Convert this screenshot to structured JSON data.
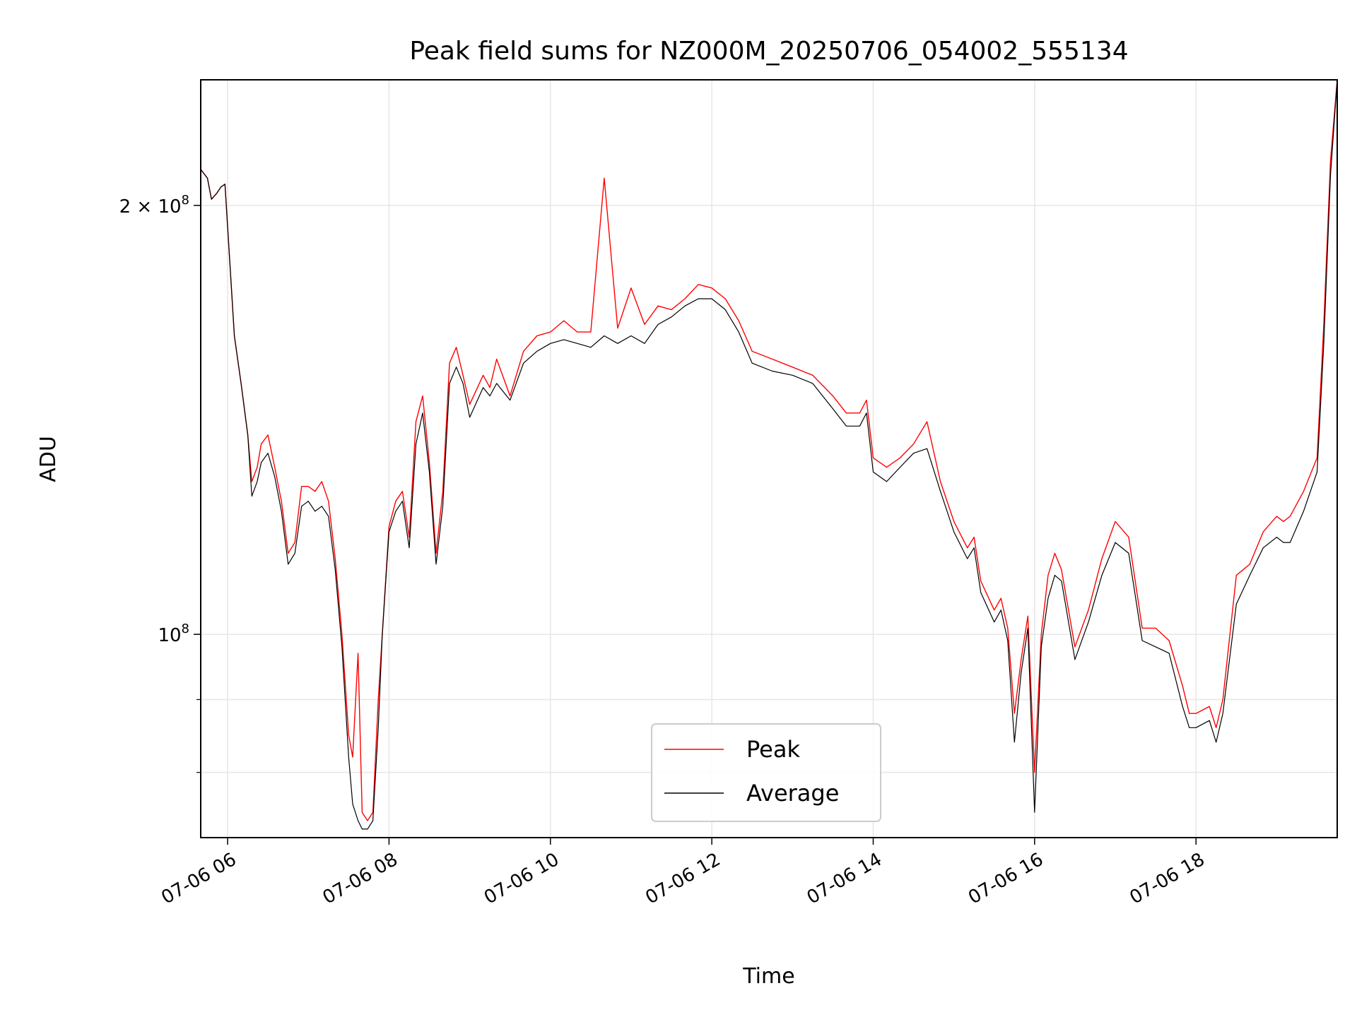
{
  "chart_data": {
    "type": "line",
    "title": "Peak field sums for NZ000M_20250706_054002_555134",
    "xlabel": "Time",
    "ylabel": "ADU",
    "yscale": "log",
    "xlim": [
      "2025-07-06T05:40",
      "2025-07-06T19:45"
    ],
    "ylim": [
      72000000,
      245000000
    ],
    "x_ticks": [
      {
        "x": "2025-07-06T06:00",
        "label": "07-06 06"
      },
      {
        "x": "2025-07-06T08:00",
        "label": "07-06 08"
      },
      {
        "x": "2025-07-06T10:00",
        "label": "07-06 10"
      },
      {
        "x": "2025-07-06T12:00",
        "label": "07-06 12"
      },
      {
        "x": "2025-07-06T14:00",
        "label": "07-06 14"
      },
      {
        "x": "2025-07-06T16:00",
        "label": "07-06 16"
      },
      {
        "x": "2025-07-06T18:00",
        "label": "07-06 18"
      }
    ],
    "y_ticks_major": [
      {
        "value": 100000000,
        "base": "10",
        "exp": "8",
        "mant": ""
      },
      {
        "value": 200000000,
        "base": "10",
        "exp": "8",
        "mant": "2 × "
      }
    ],
    "y_ticks_minor": [
      80000000,
      90000000
    ],
    "grid": true,
    "legend_position": "lower-center",
    "colors": {
      "peak": "#ff0000",
      "average": "#000000"
    },
    "x": [
      "2025-07-06T05:40",
      "2025-07-06T05:45",
      "2025-07-06T05:48",
      "2025-07-06T05:52",
      "2025-07-06T05:55",
      "2025-07-06T05:58",
      "2025-07-06T06:02",
      "2025-07-06T06:05",
      "2025-07-06T06:10",
      "2025-07-06T06:15",
      "2025-07-06T06:18",
      "2025-07-06T06:22",
      "2025-07-06T06:25",
      "2025-07-06T06:30",
      "2025-07-06T06:35",
      "2025-07-06T06:40",
      "2025-07-06T06:45",
      "2025-07-06T06:50",
      "2025-07-06T06:55",
      "2025-07-06T07:00",
      "2025-07-06T07:05",
      "2025-07-06T07:10",
      "2025-07-06T07:15",
      "2025-07-06T07:20",
      "2025-07-06T07:25",
      "2025-07-06T07:30",
      "2025-07-06T07:33",
      "2025-07-06T07:37",
      "2025-07-06T07:40",
      "2025-07-06T07:44",
      "2025-07-06T07:48",
      "2025-07-06T07:52",
      "2025-07-06T07:55",
      "2025-07-06T08:00",
      "2025-07-06T08:05",
      "2025-07-06T08:10",
      "2025-07-06T08:15",
      "2025-07-06T08:20",
      "2025-07-06T08:25",
      "2025-07-06T08:30",
      "2025-07-06T08:35",
      "2025-07-06T08:40",
      "2025-07-06T08:45",
      "2025-07-06T08:50",
      "2025-07-06T08:55",
      "2025-07-06T09:00",
      "2025-07-06T09:10",
      "2025-07-06T09:15",
      "2025-07-06T09:20",
      "2025-07-06T09:30",
      "2025-07-06T09:40",
      "2025-07-06T09:50",
      "2025-07-06T10:00",
      "2025-07-06T10:10",
      "2025-07-06T10:20",
      "2025-07-06T10:30",
      "2025-07-06T10:40",
      "2025-07-06T10:50",
      "2025-07-06T11:00",
      "2025-07-06T11:10",
      "2025-07-06T11:20",
      "2025-07-06T11:30",
      "2025-07-06T11:40",
      "2025-07-06T11:50",
      "2025-07-06T12:00",
      "2025-07-06T12:10",
      "2025-07-06T12:20",
      "2025-07-06T12:30",
      "2025-07-06T12:45",
      "2025-07-06T13:00",
      "2025-07-06T13:15",
      "2025-07-06T13:30",
      "2025-07-06T13:40",
      "2025-07-06T13:50",
      "2025-07-06T13:55",
      "2025-07-06T14:00",
      "2025-07-06T14:10",
      "2025-07-06T14:20",
      "2025-07-06T14:30",
      "2025-07-06T14:40",
      "2025-07-06T14:50",
      "2025-07-06T15:00",
      "2025-07-06T15:10",
      "2025-07-06T15:15",
      "2025-07-06T15:20",
      "2025-07-06T15:30",
      "2025-07-06T15:35",
      "2025-07-06T15:40",
      "2025-07-06T15:45",
      "2025-07-06T15:50",
      "2025-07-06T15:55",
      "2025-07-06T16:00",
      "2025-07-06T16:05",
      "2025-07-06T16:10",
      "2025-07-06T16:15",
      "2025-07-06T16:20",
      "2025-07-06T16:30",
      "2025-07-06T16:40",
      "2025-07-06T16:50",
      "2025-07-06T17:00",
      "2025-07-06T17:10",
      "2025-07-06T17:20",
      "2025-07-06T17:30",
      "2025-07-06T17:40",
      "2025-07-06T17:50",
      "2025-07-06T17:55",
      "2025-07-06T18:00",
      "2025-07-06T18:10",
      "2025-07-06T18:15",
      "2025-07-06T18:20",
      "2025-07-06T18:30",
      "2025-07-06T18:40",
      "2025-07-06T18:50",
      "2025-07-06T19:00",
      "2025-07-06T19:05",
      "2025-07-06T19:10",
      "2025-07-06T19:20",
      "2025-07-06T19:30",
      "2025-07-06T19:35",
      "2025-07-06T19:40",
      "2025-07-06T19:45"
    ],
    "series": [
      {
        "name": "Peak",
        "color": "#ff0000",
        "values": [
          212000000,
          209000000,
          202000000,
          204000000,
          206000000,
          207000000,
          180000000,
          162000000,
          150000000,
          138000000,
          128000000,
          131000000,
          136000000,
          138000000,
          131000000,
          124000000,
          114000000,
          116000000,
          127000000,
          127000000,
          126000000,
          128000000,
          124000000,
          113000000,
          100000000,
          85000000,
          82000000,
          97000000,
          75000000,
          74000000,
          75000000,
          90000000,
          100000000,
          119000000,
          124000000,
          126000000,
          117000000,
          141000000,
          147000000,
          132000000,
          114000000,
          126000000,
          155000000,
          159000000,
          152000000,
          145000000,
          152000000,
          149000000,
          156000000,
          147000000,
          158000000,
          162000000,
          163000000,
          166000000,
          163000000,
          163000000,
          209000000,
          164000000,
          175000000,
          165000000,
          170000000,
          169000000,
          172000000,
          176000000,
          175000000,
          172000000,
          166000000,
          158000000,
          156000000,
          154000000,
          152000000,
          147000000,
          143000000,
          143000000,
          146000000,
          133000000,
          131000000,
          133000000,
          136000000,
          141000000,
          128000000,
          120000000,
          115000000,
          117000000,
          109000000,
          104000000,
          106000000,
          101000000,
          88000000,
          96000000,
          103000000,
          80000000,
          100000000,
          110000000,
          114000000,
          111000000,
          98000000,
          104000000,
          113000000,
          120000000,
          117000000,
          101000000,
          101000000,
          99000000,
          92000000,
          88000000,
          88000000,
          89000000,
          86000000,
          90000000,
          110000000,
          112000000,
          118000000,
          121000000,
          120000000,
          121000000,
          126000000,
          133000000,
          165000000,
          215000000,
          245000000
        ]
      },
      {
        "name": "Average",
        "color": "#000000",
        "values": [
          212000000,
          209000000,
          202000000,
          204000000,
          206000000,
          207000000,
          180000000,
          162000000,
          150000000,
          138000000,
          125000000,
          128000000,
          132000000,
          134000000,
          129000000,
          122000000,
          112000000,
          114000000,
          123000000,
          124000000,
          122000000,
          123000000,
          121000000,
          111000000,
          98000000,
          82000000,
          76000000,
          74000000,
          73000000,
          73000000,
          74000000,
          86000000,
          100000000,
          118000000,
          122000000,
          124000000,
          115000000,
          136000000,
          143000000,
          130000000,
          112000000,
          123000000,
          150000000,
          154000000,
          150000000,
          142000000,
          149000000,
          147000000,
          150000000,
          146000000,
          155000000,
          158000000,
          160000000,
          161000000,
          160000000,
          159000000,
          162000000,
          160000000,
          162000000,
          160000000,
          165000000,
          167000000,
          170000000,
          172000000,
          172000000,
          169000000,
          163000000,
          155000000,
          153000000,
          152000000,
          150000000,
          144000000,
          140000000,
          140000000,
          143000000,
          130000000,
          128000000,
          131000000,
          134000000,
          135000000,
          126000000,
          118000000,
          113000000,
          115000000,
          107000000,
          102000000,
          104000000,
          99000000,
          84000000,
          94000000,
          101000000,
          75000000,
          98000000,
          106000000,
          110000000,
          109000000,
          96000000,
          102000000,
          110000000,
          116000000,
          114000000,
          99000000,
          98000000,
          97000000,
          89000000,
          86000000,
          86000000,
          87000000,
          84000000,
          88000000,
          105000000,
          110000000,
          115000000,
          117000000,
          116000000,
          116000000,
          122000000,
          130000000,
          160000000,
          210000000,
          245000000
        ]
      }
    ]
  }
}
